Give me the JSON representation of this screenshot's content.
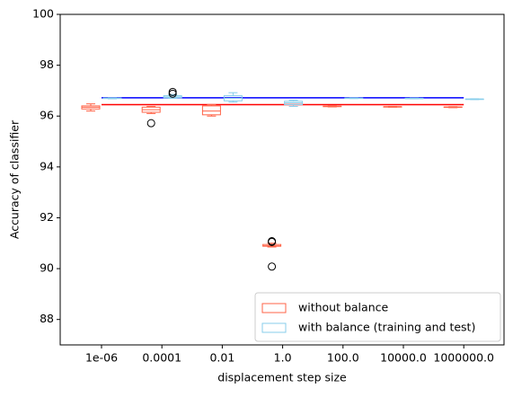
{
  "chart_data": {
    "type": "box",
    "xlabel": "displacement step size",
    "ylabel": "Accuracy of classifier",
    "categories": [
      "1e-06",
      "0.0001",
      "0.01",
      "1.0",
      "100.0",
      "10000.0",
      "1000000.0"
    ],
    "series": [
      {
        "name": "without balance",
        "color": "#ff6347",
        "boxes": [
          {
            "whislo": 96.2,
            "q1": 96.28,
            "med": 96.35,
            "q3": 96.4,
            "whishi": 96.48,
            "fliers": []
          },
          {
            "whislo": 96.1,
            "q1": 96.15,
            "med": 96.25,
            "q3": 96.35,
            "whishi": 96.38,
            "fliers": [
              95.72
            ]
          },
          {
            "whislo": 96.0,
            "q1": 96.05,
            "med": 96.2,
            "q3": 96.4,
            "whishi": 96.45,
            "fliers": []
          },
          {
            "whislo": 90.85,
            "q1": 90.88,
            "med": 90.9,
            "q3": 90.95,
            "whishi": 91.0,
            "fliers": [
              91.08,
              91.05,
              90.08
            ]
          },
          {
            "whislo": 96.36,
            "q1": 96.37,
            "med": 96.38,
            "q3": 96.39,
            "whishi": 96.4,
            "fliers": []
          },
          {
            "whislo": 96.35,
            "q1": 96.36,
            "med": 96.37,
            "q3": 96.37,
            "whishi": 96.38,
            "fliers": []
          },
          {
            "whislo": 96.33,
            "q1": 96.34,
            "med": 96.35,
            "q3": 96.36,
            "whishi": 96.37,
            "fliers": []
          }
        ]
      },
      {
        "name": "with balance (training and test)",
        "color": "#87ceeb",
        "boxes": [
          {
            "whislo": 96.68,
            "q1": 96.69,
            "med": 96.7,
            "q3": 96.71,
            "whishi": 96.72,
            "fliers": []
          },
          {
            "whislo": 96.7,
            "q1": 96.72,
            "med": 96.75,
            "q3": 96.8,
            "whishi": 96.85,
            "fliers": [
              96.95,
              96.88
            ]
          },
          {
            "whislo": 96.55,
            "q1": 96.6,
            "med": 96.7,
            "q3": 96.8,
            "whishi": 96.92,
            "fliers": []
          },
          {
            "whislo": 96.38,
            "q1": 96.45,
            "med": 96.52,
            "q3": 96.58,
            "whishi": 96.62,
            "fliers": []
          },
          {
            "whislo": 96.69,
            "q1": 96.7,
            "med": 96.7,
            "q3": 96.71,
            "whishi": 96.72,
            "fliers": []
          },
          {
            "whislo": 96.68,
            "q1": 96.69,
            "med": 96.7,
            "q3": 96.7,
            "whishi": 96.71,
            "fliers": []
          },
          {
            "whislo": 96.65,
            "q1": 96.66,
            "med": 96.67,
            "q3": 96.67,
            "whishi": 96.68,
            "fliers": []
          }
        ]
      }
    ],
    "hlines": [
      {
        "value": 96.72,
        "color": "#0000ff"
      },
      {
        "value": 96.45,
        "color": "#ff0000"
      }
    ],
    "ylim": [
      87,
      100
    ],
    "yticks": [
      88,
      90,
      92,
      94,
      96,
      98,
      100
    ],
    "legend": "lower right"
  }
}
